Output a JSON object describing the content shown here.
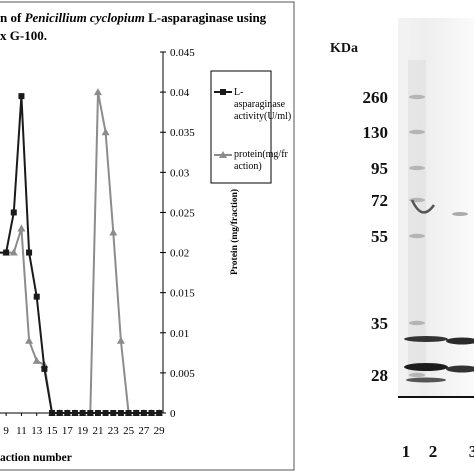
{
  "figure": {
    "title_line1_pre": "n of ",
    "title_line1_italic": "Penicillium cyclopium",
    "title_line1_post": "  L-asparaginase using",
    "title_line2": "x  G-100.",
    "colors": {
      "activity": "#1a1a1a",
      "protein": "#8c8c8c",
      "axis": "#000000"
    }
  },
  "chart_data": {
    "type": "line",
    "xlabel": "action number",
    "ylabel_right": "Protein (mg/fraction)",
    "ylim_right": [
      0,
      0.045
    ],
    "y_ticks_right": [
      "0",
      "0.005",
      "0.01",
      "0.015",
      "0.02",
      "0.025",
      "0.03",
      "0.035",
      "0.04",
      "0.045"
    ],
    "x_tick_labels": [
      "9",
      "11",
      "13",
      "15",
      "17",
      "19",
      "21",
      "23",
      "25",
      "27",
      "29"
    ],
    "x_tick_values": [
      9,
      11,
      13,
      15,
      17,
      19,
      21,
      23,
      25,
      27,
      29
    ],
    "xlim": [
      8.2,
      29.5
    ],
    "legend_position": "right",
    "series": [
      {
        "name": "L-asparaginase activity(U/ml)",
        "legend_lines": [
          "L-",
          "asparaginase",
          "activity(U/ml)"
        ],
        "marker": "square",
        "color": "#1a1a1a",
        "points": [
          {
            "x": 8,
            "y": 0.02
          },
          {
            "x": 9,
            "y": 0.02
          },
          {
            "x": 10,
            "y": 0.025
          },
          {
            "x": 11,
            "y": 0.0395
          },
          {
            "x": 12,
            "y": 0.02
          },
          {
            "x": 13,
            "y": 0.0145
          },
          {
            "x": 14,
            "y": 0.0055
          },
          {
            "x": 15,
            "y": 0
          },
          {
            "x": 16,
            "y": 0
          },
          {
            "x": 17,
            "y": 0
          },
          {
            "x": 18,
            "y": 0
          },
          {
            "x": 19,
            "y": 0
          },
          {
            "x": 20,
            "y": 0
          },
          {
            "x": 21,
            "y": 0
          },
          {
            "x": 22,
            "y": 0
          },
          {
            "x": 23,
            "y": 0
          },
          {
            "x": 24,
            "y": 0
          },
          {
            "x": 25,
            "y": 0
          },
          {
            "x": 26,
            "y": 0
          },
          {
            "x": 27,
            "y": 0
          },
          {
            "x": 28,
            "y": 0
          },
          {
            "x": 29,
            "y": 0
          }
        ]
      },
      {
        "name": "protein(mg/fraction)",
        "legend_lines": [
          "protein(mg/fr",
          "action)"
        ],
        "marker": "triangle",
        "color": "#8c8c8c",
        "points": [
          {
            "x": 8,
            "y": 0.02
          },
          {
            "x": 9,
            "y": 0.02
          },
          {
            "x": 10,
            "y": 0.02
          },
          {
            "x": 11,
            "y": 0.023
          },
          {
            "x": 12,
            "y": 0.009
          },
          {
            "x": 13,
            "y": 0.0065
          },
          {
            "x": 14,
            "y": 0.006
          },
          {
            "x": 15,
            "y": 0
          },
          {
            "x": 16,
            "y": 0
          },
          {
            "x": 17,
            "y": 0
          },
          {
            "x": 18,
            "y": 0
          },
          {
            "x": 19,
            "y": 0
          },
          {
            "x": 20,
            "y": 0
          },
          {
            "x": 21,
            "y": 0.04
          },
          {
            "x": 22,
            "y": 0.035
          },
          {
            "x": 23,
            "y": 0.0225
          },
          {
            "x": 24,
            "y": 0.009
          },
          {
            "x": 25,
            "y": 0
          },
          {
            "x": 26,
            "y": 0
          },
          {
            "x": 27,
            "y": 0
          },
          {
            "x": 28,
            "y": 0
          },
          {
            "x": 29,
            "y": 0
          }
        ]
      }
    ]
  },
  "gel": {
    "unit_label": "KDa",
    "markers": [
      "260",
      "130",
      "95",
      "72",
      "55",
      "35",
      "28"
    ],
    "marker_kda": [
      260,
      130,
      95,
      72,
      55,
      35,
      28
    ],
    "lane_labels": [
      "1",
      "2",
      "3"
    ]
  }
}
